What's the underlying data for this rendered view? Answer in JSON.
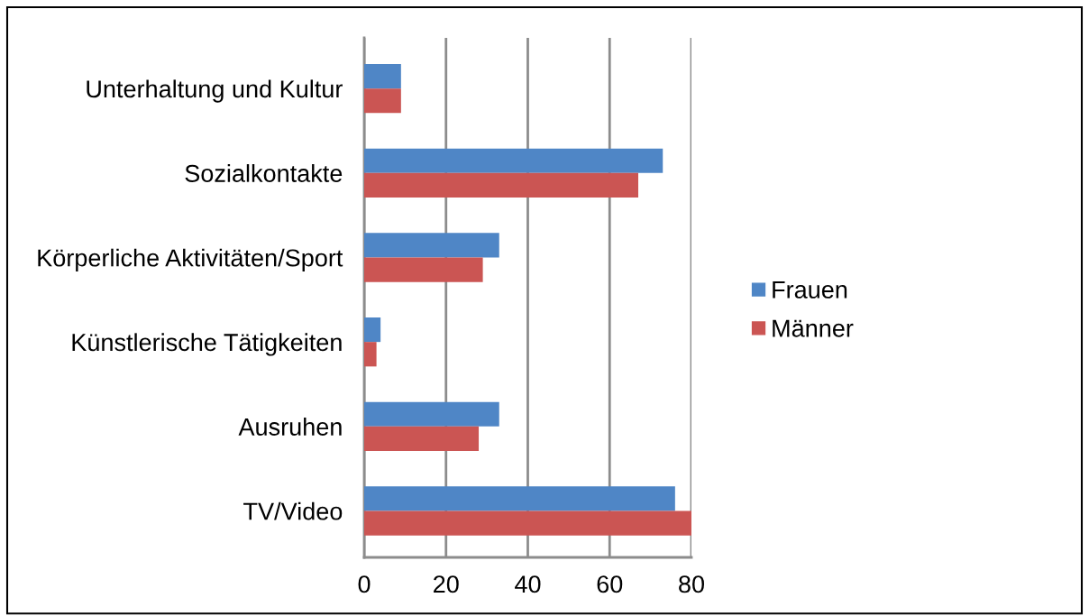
{
  "chart_data": {
    "type": "bar",
    "orientation": "horizontal",
    "categories": [
      "Unterhaltung und Kultur",
      "Sozialkontakte",
      "Körperliche Aktivitäten/Sport",
      "Künstlerische Tätigkeiten",
      "Ausruhen",
      "TV/Video"
    ],
    "series": [
      {
        "name": "Frauen",
        "color": "#4f86c6",
        "values": [
          9,
          73,
          33,
          4,
          33,
          76
        ]
      },
      {
        "name": "Männer",
        "color": "#cb5553",
        "values": [
          9,
          67,
          29,
          3,
          28,
          80
        ]
      }
    ],
    "xlim": [
      0,
      80
    ],
    "xticks": [
      0,
      20,
      40,
      60,
      80
    ],
    "grid": "x",
    "legend": "right"
  }
}
